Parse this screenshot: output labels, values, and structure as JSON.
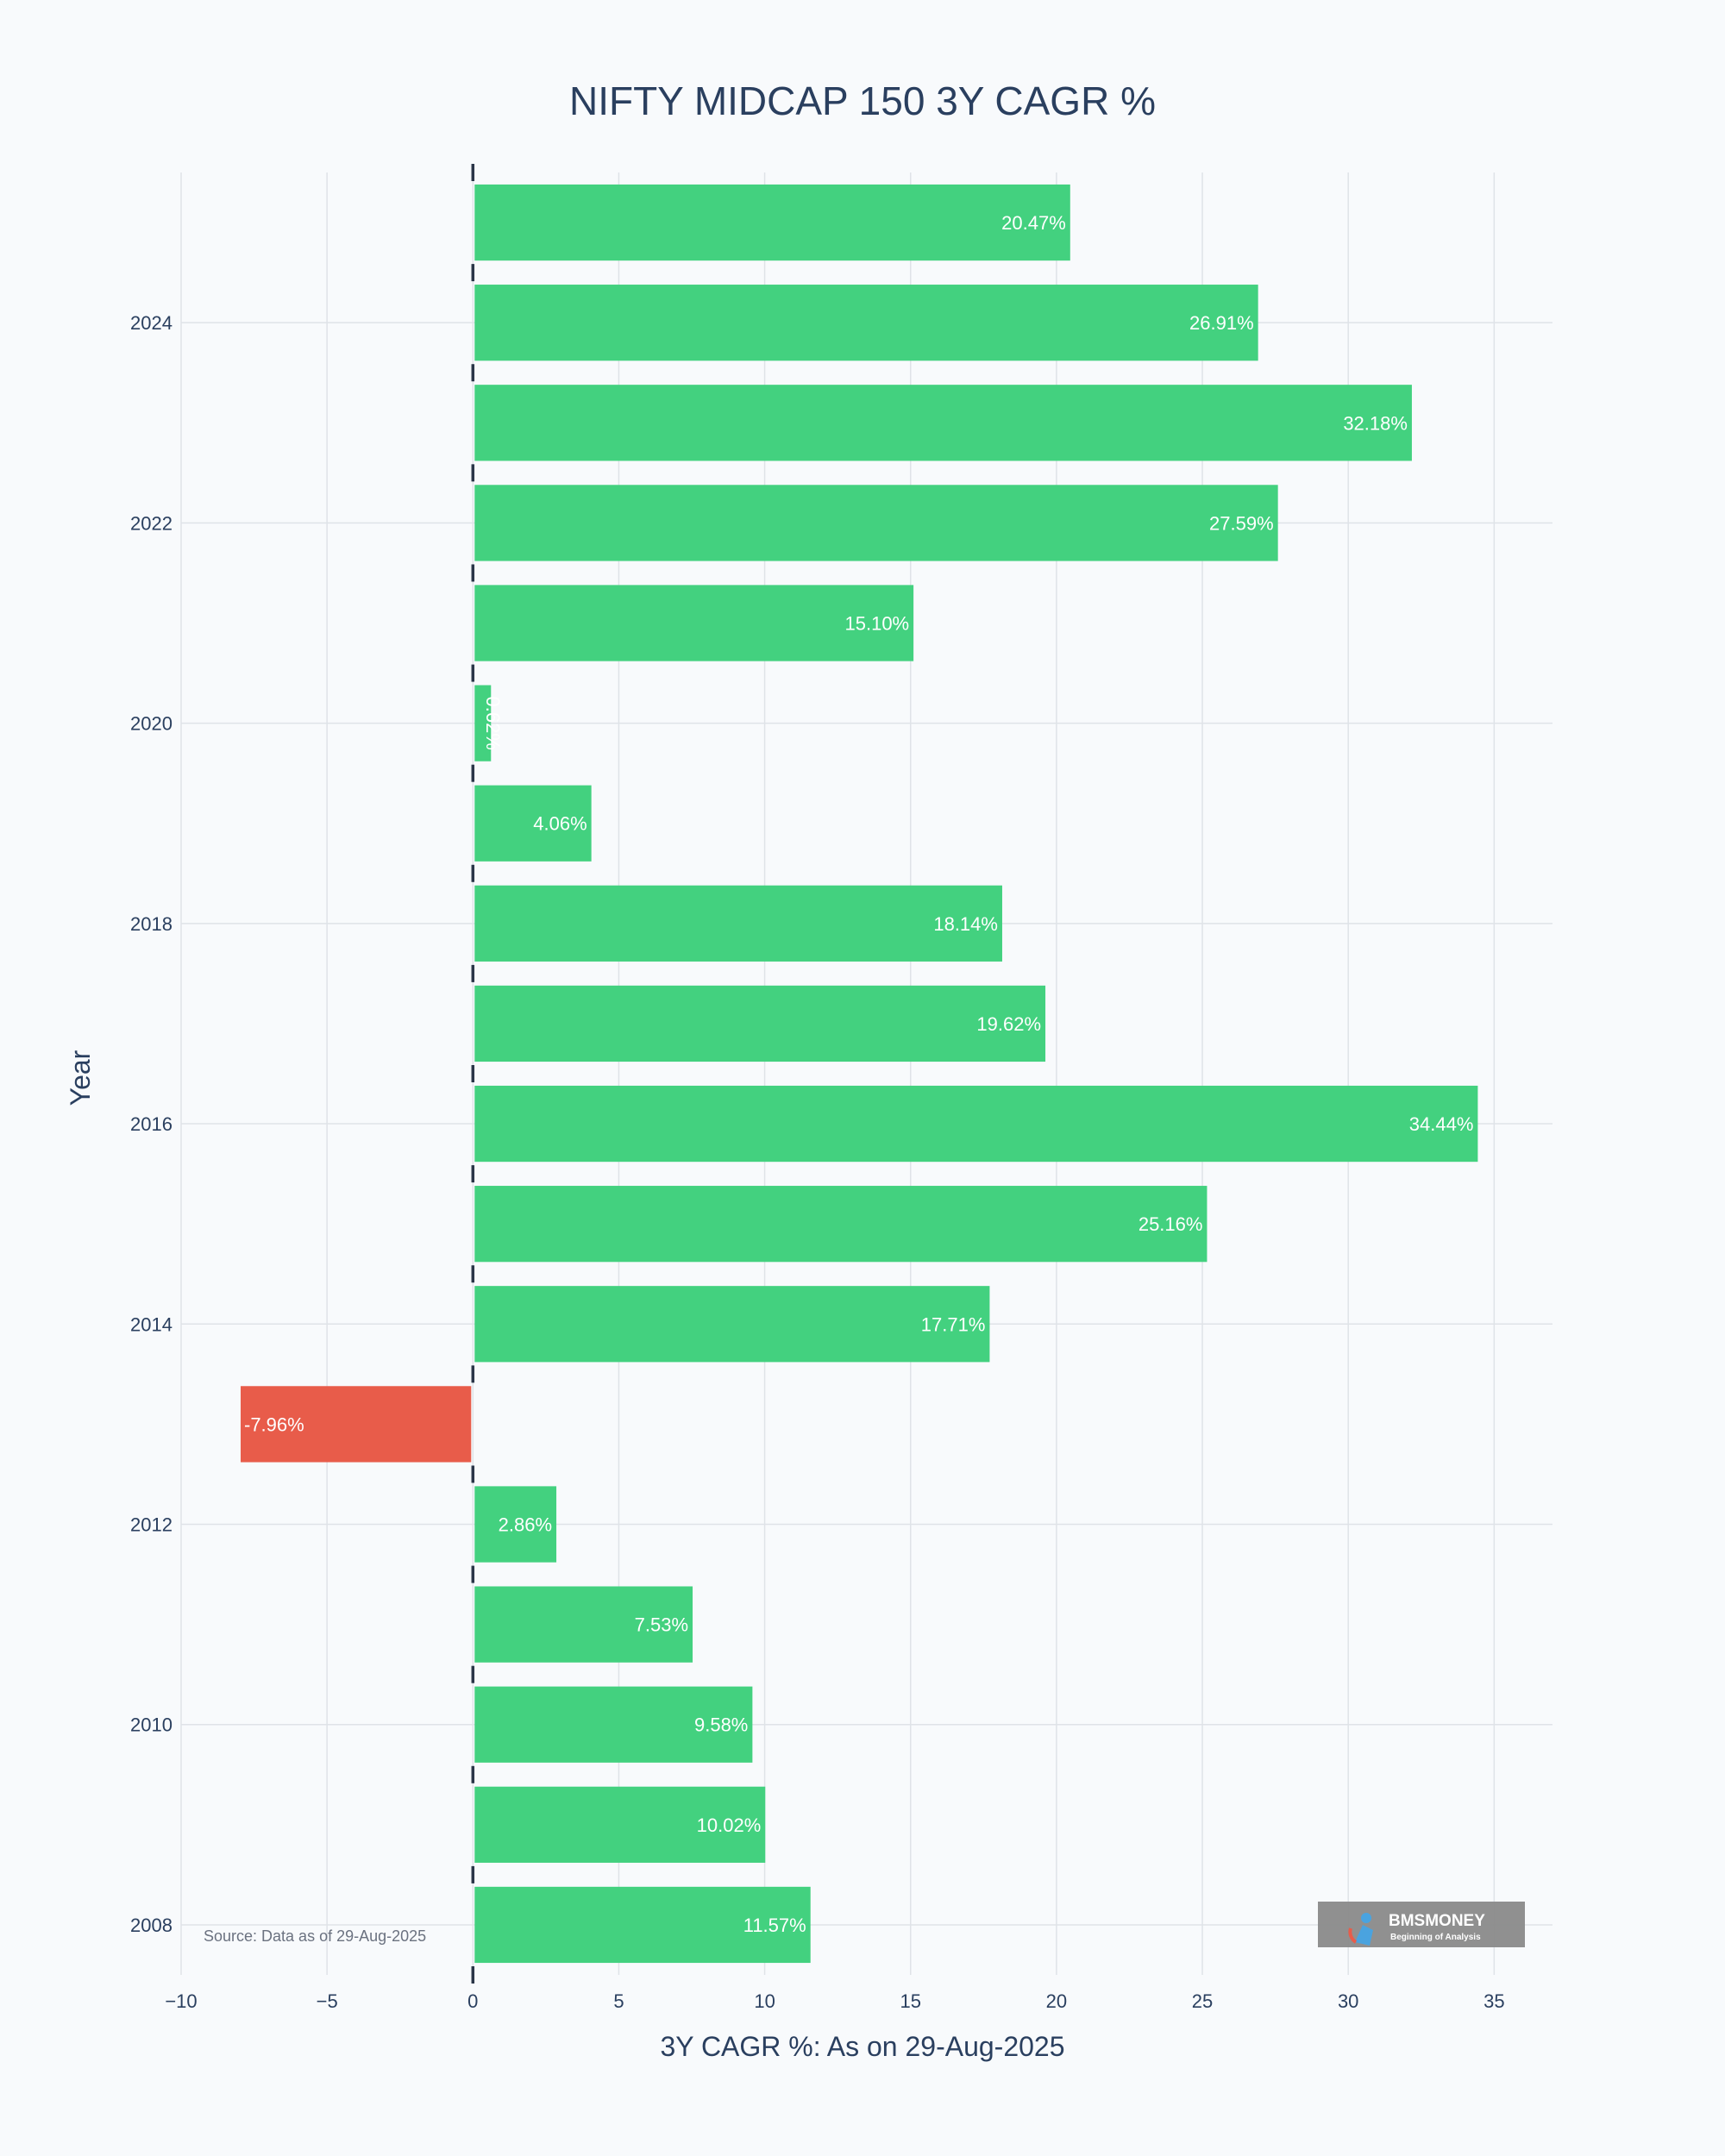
{
  "chart_data": {
    "type": "bar",
    "orientation": "horizontal",
    "title": "NIFTY MIDCAP 150 3Y CAGR %",
    "xlabel": "3Y CAGR %: As on 29-Aug-2025",
    "ylabel": "Year",
    "xlim": [
      -10,
      37
    ],
    "ylim": [
      2007.5,
      2025.5
    ],
    "grid": true,
    "x_ticks": [
      -10,
      -5,
      0,
      5,
      10,
      15,
      20,
      25,
      30,
      35
    ],
    "x_tick_labels": [
      "−10",
      "−5",
      "0",
      "5",
      "10",
      "15",
      "20",
      "25",
      "30",
      "35"
    ],
    "y_ticks": [
      2008,
      2010,
      2012,
      2014,
      2016,
      2018,
      2020,
      2022,
      2024
    ],
    "y_tick_labels": [
      "2008",
      "2010",
      "2012",
      "2014",
      "2016",
      "2018",
      "2020",
      "2022",
      "2024"
    ],
    "categories": [
      2025,
      2024,
      2023,
      2022,
      2021,
      2020,
      2019,
      2018,
      2017,
      2016,
      2015,
      2014,
      2013,
      2012,
      2011,
      2010,
      2009,
      2008
    ],
    "values": [
      20.47,
      26.91,
      32.18,
      27.59,
      15.1,
      0.62,
      4.06,
      18.14,
      19.62,
      34.44,
      25.16,
      17.71,
      -7.96,
      2.86,
      7.53,
      9.58,
      10.02,
      11.57
    ],
    "labels": [
      "20.47%",
      "26.91%",
      "32.18%",
      "27.59%",
      "15.10%",
      "0.62%",
      "4.06%",
      "18.14%",
      "19.62%",
      "34.44%",
      "25.16%",
      "17.71%",
      "-7.96%",
      "2.86%",
      "7.53%",
      "9.58%",
      "10.02%",
      "11.57%"
    ],
    "positive_color": "#43d17f",
    "negative_color": "#e85c4a",
    "annotation": "Source: Data as of 29-Aug-2025"
  },
  "logo": {
    "name": "BMSMONEY",
    "tagline": "Beginning of Analysis"
  }
}
